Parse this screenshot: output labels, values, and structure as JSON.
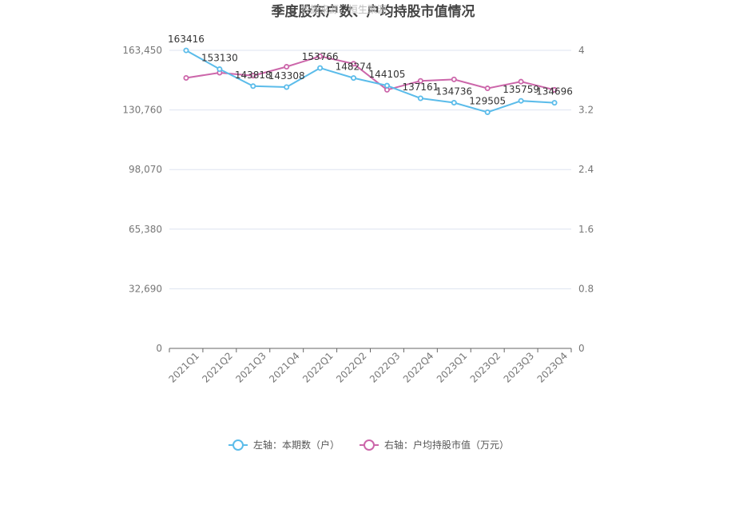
{
  "chart_data": {
    "type": "line",
    "title": "季度股东户数、户均持股市值情况",
    "watermark": "数据来源：恒生聚源",
    "categories": [
      "2021Q1",
      "2021Q2",
      "2021Q3",
      "2021Q4",
      "2022Q1",
      "2022Q2",
      "2022Q3",
      "2022Q4",
      "2023Q1",
      "2023Q2",
      "2023Q3",
      "2023Q4"
    ],
    "left_axis": {
      "min": 0,
      "max": 163450,
      "ticks": [
        "0",
        "32,690",
        "65,380",
        "98,070",
        "130,760",
        "163,450"
      ]
    },
    "right_axis": {
      "min": 0,
      "max": 4,
      "ticks": [
        "0",
        "0.8",
        "1.6",
        "2.4",
        "3.2",
        "4"
      ]
    },
    "series": [
      {
        "name": "左轴：本期数（户）",
        "axis": "left",
        "color": "#5bbcea",
        "values": [
          163416,
          153130,
          143818,
          143308,
          153766,
          148274,
          144105,
          137161,
          134736,
          129505,
          135759,
          134696
        ],
        "labels": [
          "163416",
          "153130",
          "143818",
          "143308",
          "153766",
          "148274",
          "144105",
          "137161",
          "134736",
          "129505",
          "135759",
          "134696"
        ]
      },
      {
        "name": "右轴：户均持股市值（万元）",
        "axis": "right",
        "color": "#cc66aa",
        "values": [
          3.63,
          3.7,
          3.66,
          3.78,
          3.92,
          3.82,
          3.47,
          3.59,
          3.61,
          3.49,
          3.58,
          3.47
        ]
      }
    ],
    "legend_position": "bottom-center",
    "grid": true
  }
}
